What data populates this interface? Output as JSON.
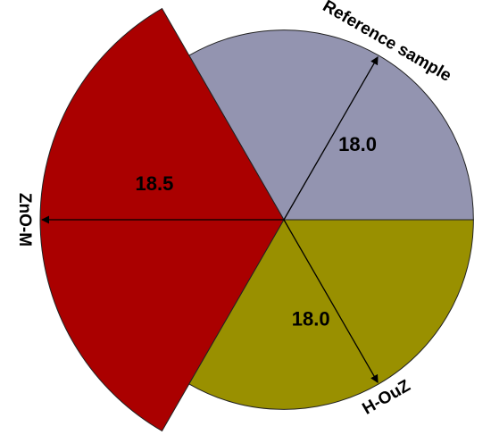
{
  "chart_data": {
    "type": "polar-area",
    "categories": [
      "Reference sample",
      "ZnO-M",
      "H-OuZ"
    ],
    "values": [
      18.0,
      18.5,
      18.0
    ],
    "value_labels": [
      "18.0",
      "18.5",
      "18.0"
    ],
    "colors": [
      "#9394b0",
      "#aa0000",
      "#999000"
    ],
    "rlim": [
      16.25,
      18.5
    ]
  }
}
